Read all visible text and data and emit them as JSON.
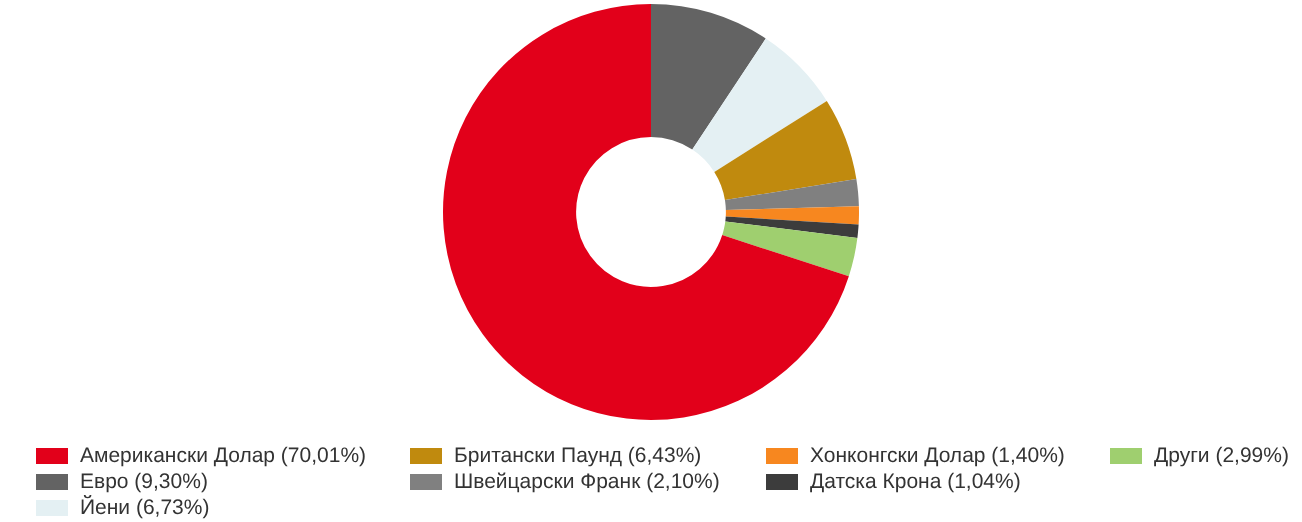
{
  "chart_data": {
    "type": "donut",
    "categories": [
      "Евро (9,30%)",
      "Йени (6,73%)",
      "Британски Паунд (6,43%)",
      "Швейцарски Франк (2,10%)",
      "Хонконгски Долар (1,40%)",
      "Датска Крона (1,04%)",
      "Други (2,99%)",
      "Американски Долар (70,01%)"
    ],
    "values": [
      9.3,
      6.73,
      6.43,
      2.1,
      1.4,
      1.04,
      2.99,
      70.01
    ],
    "colors": [
      "#636363",
      "#e4f0f3",
      "#c08a0e",
      "#808080",
      "#f7871f",
      "#3c3c3c",
      "#9fcf6f",
      "#e2001a"
    ],
    "legend": "bottom"
  }
}
